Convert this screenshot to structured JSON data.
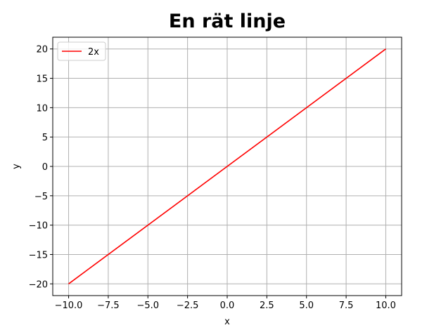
{
  "chart_data": {
    "type": "line",
    "title": "En rät linje",
    "xlabel": "x",
    "ylabel": "y",
    "xlim": [
      -11,
      11
    ],
    "ylim": [
      -22,
      22
    ],
    "x_ticks": [
      -10.0,
      -7.5,
      -5.0,
      -2.5,
      0.0,
      2.5,
      5.0,
      7.5,
      10.0
    ],
    "x_tick_labels": [
      "−10.0",
      "−7.5",
      "−5.0",
      "−2.5",
      "0.0",
      "2.5",
      "5.0",
      "7.5",
      "10.0"
    ],
    "y_ticks": [
      -20,
      -15,
      -10,
      -5,
      0,
      5,
      10,
      15,
      20
    ],
    "y_tick_labels": [
      "−20",
      "−15",
      "−10",
      "−5",
      "0",
      "5",
      "10",
      "15",
      "20"
    ],
    "grid": true,
    "legend_position": "top-left",
    "series": [
      {
        "name": "2x",
        "color": "#ff0000",
        "x": [
          -10,
          10
        ],
        "y": [
          -20,
          20
        ]
      }
    ]
  }
}
